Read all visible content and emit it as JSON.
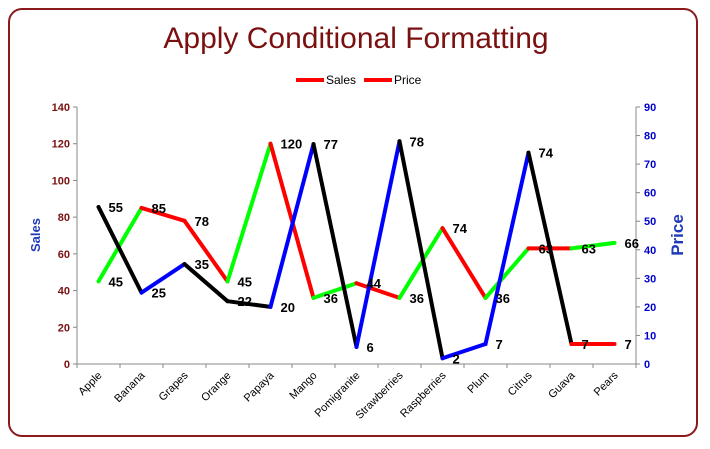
{
  "chart_data": {
    "type": "line",
    "title": "Apply Conditional Formatting",
    "categories": [
      "Apple",
      "Banana",
      "Grapes",
      "Orange",
      "Papaya",
      "Mango",
      "Pomigranite",
      "Strawberries",
      "Raspberries",
      "Plum",
      "Citrus",
      "Guava",
      "Pears"
    ],
    "series": [
      {
        "name": "Sales",
        "axis": "left",
        "values": [
          45,
          85,
          78,
          45,
          120,
          36,
          44,
          36,
          74,
          36,
          63,
          63,
          66
        ],
        "labels": [
          "45",
          "85",
          "78",
          "45",
          "120",
          "36",
          "44",
          "36",
          "74",
          "36",
          "63",
          "63",
          "66"
        ]
      },
      {
        "name": "Price",
        "axis": "right",
        "values": [
          55,
          25,
          35,
          22,
          20,
          77,
          6,
          78,
          2,
          7,
          74,
          7,
          7
        ],
        "labels": [
          "55",
          "25",
          "35",
          "22",
          "20",
          "77",
          "6",
          "78",
          "2",
          "7",
          "74",
          "7",
          "7"
        ]
      }
    ],
    "legend": {
      "position": "top",
      "items": [
        {
          "name": "Sales",
          "color": "#ff0000"
        },
        {
          "name": "Price",
          "color": "#ff0000"
        }
      ]
    },
    "ylabel": "Sales",
    "y2label": "Price",
    "ylim": [
      0,
      140
    ],
    "yticks": [
      "0",
      "20",
      "40",
      "60",
      "80",
      "100",
      "120",
      "140"
    ],
    "y2lim": [
      0,
      90
    ],
    "y2ticks": [
      "0",
      "10",
      "20",
      "30",
      "40",
      "50",
      "60",
      "70",
      "80",
      "90"
    ],
    "grid": false,
    "colors": {
      "increase": "#ff0000",
      "decrease": "#00ff00",
      "price_up": "#000000",
      "price_down": "#0000ff",
      "title": "#7b1010",
      "left_ticks": "#7b1010",
      "right_ticks": "#0000cc",
      "axis_titles": "#1f3ab8",
      "frame": "#8b1a1a"
    }
  }
}
